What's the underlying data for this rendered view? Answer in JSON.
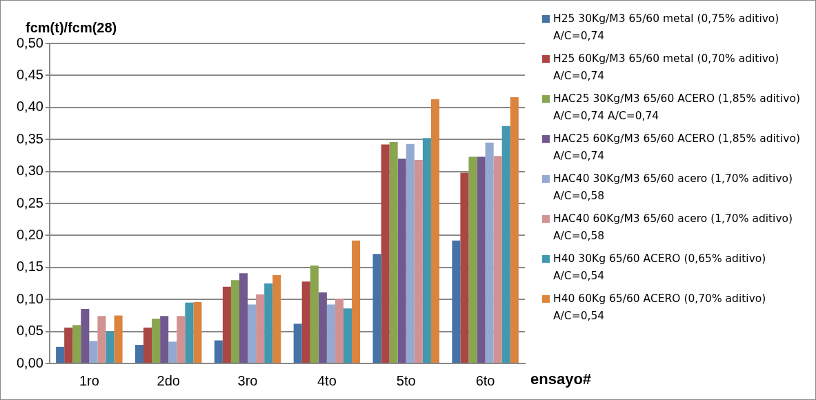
{
  "chart_data": {
    "type": "bar",
    "ylabel": "fcm(t)/fcm(28)",
    "xlabel": "ensayo#",
    "categories": [
      "1ro",
      "2do",
      "3ro",
      "4to",
      "5to",
      "6to"
    ],
    "series": [
      {
        "name": "H25 30Kg/M3  65/60 metal (0,75% aditivo) A/C=0,74",
        "color": "#4572a7",
        "values": [
          0.026,
          0.029,
          0.036,
          0.062,
          0.171,
          0.192
        ]
      },
      {
        "name": "H25 60Kg/M3  65/60 metal (0,70% aditivo) A/C=0,74",
        "color": "#aa4643",
        "values": [
          0.056,
          0.056,
          0.12,
          0.128,
          0.342,
          0.298
        ]
      },
      {
        "name": "HAC25 30Kg/M3 65/60 ACERO (1,85% aditivo) A/C=0,74  A/C=0,74",
        "color": "#89a54e",
        "values": [
          0.06,
          0.07,
          0.13,
          0.153,
          0.346,
          0.323
        ]
      },
      {
        "name": "HAC25 60Kg/M3 65/60 ACERO (1,85% aditivo)  A/C=0,74",
        "color": "#71588f",
        "values": [
          0.085,
          0.074,
          0.141,
          0.111,
          0.32,
          0.323
        ]
      },
      {
        "name": "HAC40 30Kg/M3  65/60 acero (1,70% aditivo)  A/C=0,58",
        "color": "#94a9d2",
        "values": [
          0.035,
          0.034,
          0.092,
          0.092,
          0.343,
          0.345
        ]
      },
      {
        "name": "HAC40 60Kg/M3  65/60 acero (1,70% aditivo)  A/C=0,58",
        "color": "#d39292",
        "values": [
          0.074,
          0.074,
          0.108,
          0.101,
          0.318,
          0.324
        ]
      },
      {
        "name": "H40 30Kg 65/60  ACERO (0,65% aditivo) A/C=0,54",
        "color": "#4198af",
        "values": [
          0.05,
          0.095,
          0.125,
          0.086,
          0.352,
          0.371
        ]
      },
      {
        "name": "H40 60Kg 65/60  ACERO (0,70% aditivo) A/C=0,54",
        "color": "#db843d",
        "values": [
          0.075,
          0.096,
          0.138,
          0.192,
          0.413,
          0.416
        ]
      }
    ],
    "ylim": [
      0,
      0.5
    ],
    "yticks": [
      {
        "value": 0,
        "label": "0,00"
      },
      {
        "value": 0.05,
        "label": "0,05"
      },
      {
        "value": 0.1,
        "label": "0,10"
      },
      {
        "value": 0.15,
        "label": "0,15"
      },
      {
        "value": 0.2,
        "label": "0,20"
      },
      {
        "value": 0.25,
        "label": "0,25"
      },
      {
        "value": 0.3,
        "label": "0,30"
      },
      {
        "value": 0.35,
        "label": "0,35"
      },
      {
        "value": 0.4,
        "label": "0,40"
      },
      {
        "value": 0.45,
        "label": "0,45"
      },
      {
        "value": 0.5,
        "label": "0,50"
      }
    ],
    "grid": "y",
    "legend": "right"
  }
}
